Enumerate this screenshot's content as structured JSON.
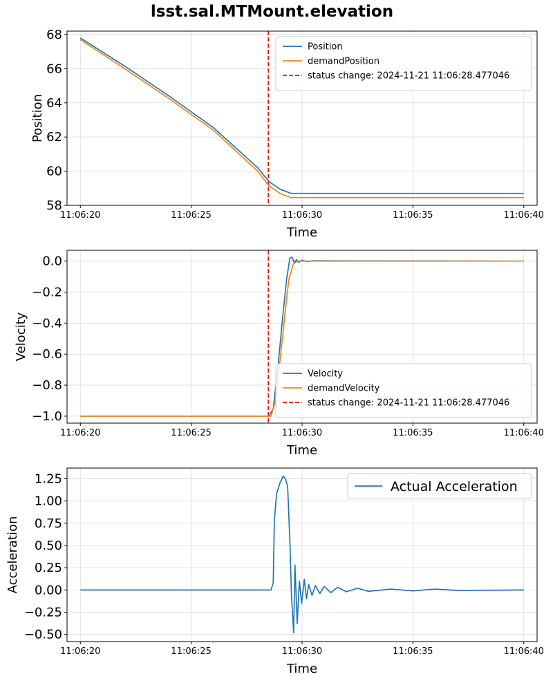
{
  "figure_title": "lsst.sal.MTMount.elevation",
  "colors": {
    "blue": "#1f77b4",
    "orange": "#ff7f0e",
    "red": "#ff0000",
    "grid": "#d9d9d9"
  },
  "chart_data": [
    {
      "type": "line",
      "xlabel": "Time",
      "ylabel": "Position",
      "x_ticks": [
        "11:06:20",
        "11:06:25",
        "11:06:30",
        "11:06:35",
        "11:06:40"
      ],
      "xlim": [
        -0.6,
        20.6
      ],
      "ylim": [
        58,
        68.2
      ],
      "y_ticks": [
        58,
        60,
        62,
        64,
        66,
        68
      ],
      "grid": true,
      "legend_position": "upper right",
      "vline": {
        "x": 8.477,
        "label": "status change: 2024-11-21 11:06:28.477046"
      },
      "series": [
        {
          "name": "Position",
          "color": "#1f77b4",
          "points": [
            [
              0,
              67.8
            ],
            [
              2,
              66.15
            ],
            [
              4,
              64.4
            ],
            [
              6,
              62.55
            ],
            [
              8,
              60.2
            ],
            [
              8.5,
              59.4
            ],
            [
              9.0,
              58.95
            ],
            [
              9.5,
              58.7
            ],
            [
              20,
              58.7
            ]
          ]
        },
        {
          "name": "demandPosition",
          "color": "#ff7f0e",
          "points": [
            [
              0,
              67.7
            ],
            [
              2,
              66.0
            ],
            [
              4,
              64.25
            ],
            [
              6,
              62.4
            ],
            [
              8,
              60.0
            ],
            [
              8.5,
              59.15
            ],
            [
              9.0,
              58.7
            ],
            [
              9.5,
              58.45
            ],
            [
              20,
              58.45
            ]
          ]
        }
      ]
    },
    {
      "type": "line",
      "xlabel": "Time",
      "ylabel": "Velocity",
      "x_ticks": [
        "11:06:20",
        "11:06:25",
        "11:06:30",
        "11:06:35",
        "11:06:40"
      ],
      "xlim": [
        -0.6,
        20.6
      ],
      "ylim": [
        -1.045,
        0.07
      ],
      "y_ticks": [
        -1.0,
        -0.8,
        -0.6,
        -0.4,
        -0.2,
        0.0
      ],
      "y_tick_labels": [
        "−1.0",
        "−0.8",
        "−0.6",
        "−0.4",
        "−0.2",
        "0.0"
      ],
      "grid": true,
      "legend_position": "lower right",
      "vline": {
        "x": 8.477,
        "label": "status change: 2024-11-21 11:06:28.477046"
      },
      "series": [
        {
          "name": "Velocity",
          "color": "#1f77b4",
          "points": [
            [
              0,
              -1.0
            ],
            [
              8.5,
              -1.0
            ],
            [
              8.7,
              -0.95
            ],
            [
              8.9,
              -0.7
            ],
            [
              9.1,
              -0.4
            ],
            [
              9.3,
              -0.12
            ],
            [
              9.45,
              0.02
            ],
            [
              9.55,
              0.025
            ],
            [
              9.65,
              -0.01
            ],
            [
              9.75,
              0.01
            ],
            [
              9.85,
              -0.008
            ],
            [
              10.0,
              0.006
            ],
            [
              10.2,
              -0.003
            ],
            [
              10.5,
              0.002
            ],
            [
              20,
              0.0
            ]
          ]
        },
        {
          "name": "demandVelocity",
          "color": "#ff7f0e",
          "points": [
            [
              0,
              -1.0
            ],
            [
              8.6,
              -1.0
            ],
            [
              8.8,
              -0.9
            ],
            [
              9.0,
              -0.65
            ],
            [
              9.2,
              -0.38
            ],
            [
              9.4,
              -0.12
            ],
            [
              9.6,
              -0.02
            ],
            [
              9.8,
              0.0
            ],
            [
              20,
              0.0
            ]
          ]
        }
      ]
    },
    {
      "type": "line",
      "xlabel": "Time",
      "ylabel": "Acceleration",
      "x_ticks": [
        "11:06:20",
        "11:06:25",
        "11:06:30",
        "11:06:35",
        "11:06:40"
      ],
      "xlim": [
        -0.6,
        20.6
      ],
      "ylim": [
        -0.58,
        1.37
      ],
      "y_ticks": [
        -0.5,
        -0.25,
        0.0,
        0.25,
        0.5,
        0.75,
        1.0,
        1.25
      ],
      "y_tick_labels": [
        "−0.50",
        "−0.25",
        "0.00",
        "0.25",
        "0.50",
        "0.75",
        "1.00",
        "1.25"
      ],
      "grid": true,
      "legend_position": "upper right",
      "series": [
        {
          "name": "Actual Acceleration",
          "color": "#1f77b4",
          "points": [
            [
              0,
              0.0
            ],
            [
              8.6,
              0.0
            ],
            [
              8.7,
              0.08
            ],
            [
              8.75,
              0.78
            ],
            [
              8.85,
              1.08
            ],
            [
              9.0,
              1.2
            ],
            [
              9.15,
              1.28
            ],
            [
              9.25,
              1.25
            ],
            [
              9.35,
              1.16
            ],
            [
              9.45,
              0.55
            ],
            [
              9.52,
              -0.05
            ],
            [
              9.62,
              -0.48
            ],
            [
              9.68,
              0.28
            ],
            [
              9.78,
              -0.38
            ],
            [
              9.88,
              0.1
            ],
            [
              9.98,
              -0.15
            ],
            [
              10.1,
              0.12
            ],
            [
              10.2,
              -0.1
            ],
            [
              10.3,
              0.06
            ],
            [
              10.45,
              -0.06
            ],
            [
              10.6,
              0.05
            ],
            [
              10.8,
              -0.04
            ],
            [
              11.0,
              0.04
            ],
            [
              11.3,
              -0.03
            ],
            [
              11.6,
              0.03
            ],
            [
              12.0,
              -0.02
            ],
            [
              12.5,
              0.02
            ],
            [
              13.0,
              -0.015
            ],
            [
              14.0,
              0.01
            ],
            [
              15.0,
              -0.01
            ],
            [
              16.0,
              0.01
            ],
            [
              17.0,
              -0.005
            ],
            [
              20,
              0.0
            ]
          ]
        }
      ]
    }
  ]
}
